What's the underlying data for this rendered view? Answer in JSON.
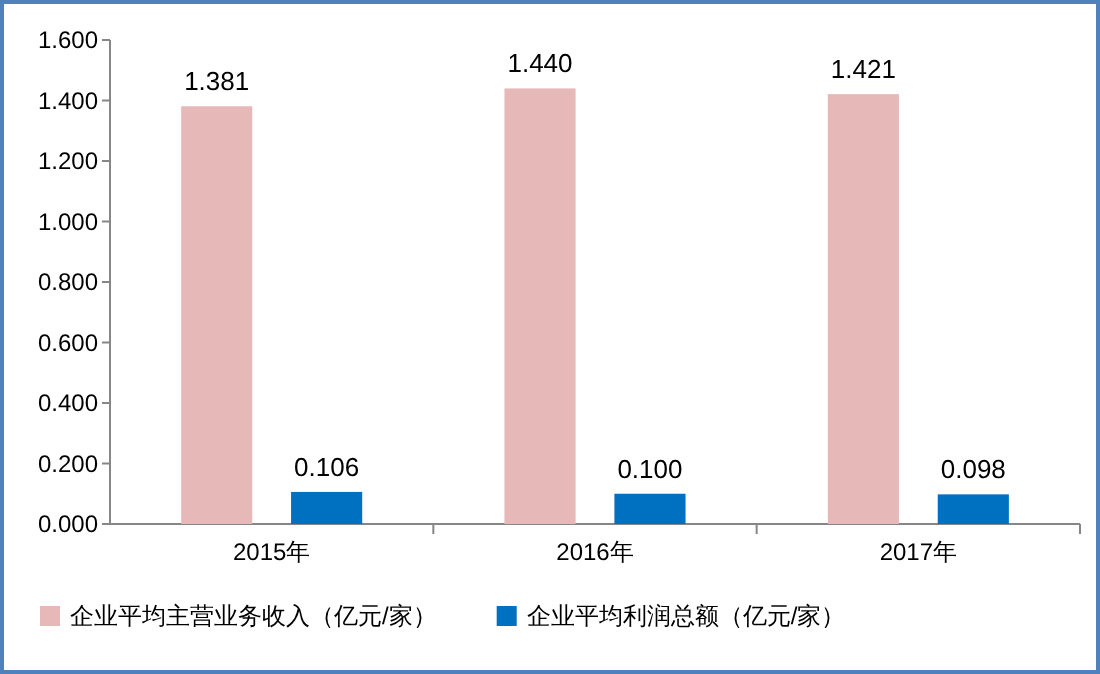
{
  "chart_data": {
    "type": "bar",
    "categories": [
      "2015年",
      "2016年",
      "2017年"
    ],
    "series": [
      {
        "name": "企业平均主营业务收入（亿元/家）",
        "color": "#e6b9b8",
        "values": [
          1.381,
          1.44,
          1.421
        ],
        "value_labels": [
          "1.381",
          "1.440",
          "1.421"
        ]
      },
      {
        "name": "企业平均利润总额（亿元/家）",
        "color": "#0070c0",
        "values": [
          0.106,
          0.1,
          0.098
        ],
        "value_labels": [
          "0.106",
          "0.100",
          "0.098"
        ]
      }
    ],
    "ylim": [
      0,
      1.6
    ],
    "yticks": [
      {
        "value": 0,
        "label": "0.000"
      },
      {
        "value": 0.2,
        "label": "0.200"
      },
      {
        "value": 0.4,
        "label": "0.400"
      },
      {
        "value": 0.6,
        "label": "0.600"
      },
      {
        "value": 0.8,
        "label": "0.800"
      },
      {
        "value": 1.0,
        "label": "1.000"
      },
      {
        "value": 1.2,
        "label": "1.200"
      },
      {
        "value": 1.4,
        "label": "1.400"
      },
      {
        "value": 1.6,
        "label": "1.600"
      }
    ],
    "legend": "bottom",
    "grid": false
  }
}
